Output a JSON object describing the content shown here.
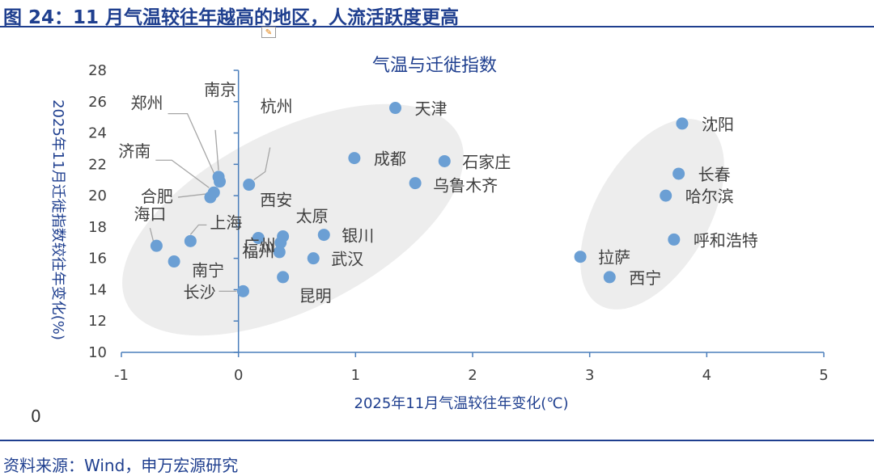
{
  "figure_title": "图 24：11 月气温较往年越高的地区，人流活跃度更高",
  "source_note": "资料来源：Wind，申万宏源研究",
  "zero_note": "0",
  "colors": {
    "point": "#6b9fd4",
    "axis": "#4a7ebb",
    "title": "#1f3f8f",
    "ellipse": "#ededed",
    "leader": "#a6a6a6"
  },
  "chart_data": {
    "type": "scatter",
    "title": "气温与迁徙指数",
    "xlabel": "2025年11月气温较往年变化(℃)",
    "ylabel": "2025年11月迁徙指数较往年变化(%)",
    "xlim": [
      -1,
      5
    ],
    "ylim": [
      10,
      28
    ],
    "xticks": [
      "-1",
      "0",
      "1",
      "2",
      "3",
      "4",
      "5"
    ],
    "yticks": [
      "10",
      "12",
      "14",
      "16",
      "18",
      "20",
      "22",
      "24",
      "26",
      "28"
    ],
    "grid": false,
    "points": [
      {
        "label": "天津",
        "x": 1.34,
        "y": 25.6
      },
      {
        "label": "沈阳",
        "x": 3.79,
        "y": 24.6
      },
      {
        "label": "成都",
        "x": 0.99,
        "y": 22.4
      },
      {
        "label": "石家庄",
        "x": 1.76,
        "y": 22.2
      },
      {
        "label": "乌鲁木齐",
        "x": 1.51,
        "y": 20.8
      },
      {
        "label": "长春",
        "x": 3.76,
        "y": 21.4
      },
      {
        "label": "哈尔滨",
        "x": 3.65,
        "y": 20.0
      },
      {
        "label": "杭州",
        "x": 0.09,
        "y": 20.7
      },
      {
        "label": "南京",
        "x": -0.17,
        "y": 21.2
      },
      {
        "label": "郑州",
        "x": -0.16,
        "y": 20.9
      },
      {
        "label": "济南",
        "x": -0.21,
        "y": 20.2
      },
      {
        "label": "合肥",
        "x": -0.24,
        "y": 19.9
      },
      {
        "label": "西安",
        "x": 0.17,
        "y": 17.3
      },
      {
        "label": "太原",
        "x": 0.38,
        "y": 17.4
      },
      {
        "label": "银川",
        "x": 0.73,
        "y": 17.5
      },
      {
        "label": "上海",
        "x": -0.41,
        "y": 17.1
      },
      {
        "label": "海口",
        "x": -0.7,
        "y": 16.8
      },
      {
        "label": "南宁",
        "x": -0.55,
        "y": 15.8
      },
      {
        "label": "广州",
        "x": 0.36,
        "y": 17.0
      },
      {
        "label": "福州",
        "x": 0.35,
        "y": 16.4
      },
      {
        "label": "武汉",
        "x": 0.64,
        "y": 16.0
      },
      {
        "label": "昆明",
        "x": 0.38,
        "y": 14.8
      },
      {
        "label": "长沙",
        "x": 0.04,
        "y": 13.9
      },
      {
        "label": "拉萨",
        "x": 2.92,
        "y": 16.1
      },
      {
        "label": "西宁",
        "x": 3.17,
        "y": 14.8
      },
      {
        "label": "呼和浩特",
        "x": 3.72,
        "y": 17.2
      }
    ]
  }
}
